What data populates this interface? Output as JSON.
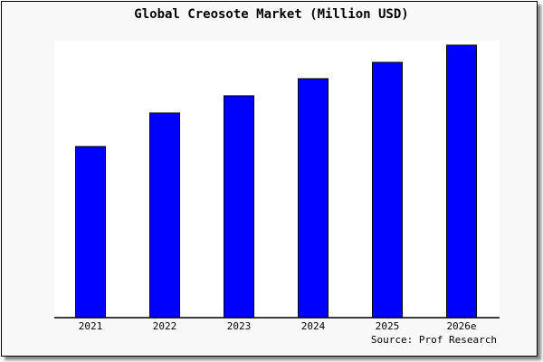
{
  "chart_data": {
    "type": "bar",
    "title": "Global Creosote Market (Million USD)",
    "categories": [
      "2021",
      "2022",
      "2023",
      "2024",
      "2025",
      "2026e"
    ],
    "values": [
      61.8,
      73.9,
      80.1,
      86.3,
      92.2,
      98.4
    ],
    "ylim": [
      0,
      100
    ],
    "xlabel": "",
    "ylabel": "",
    "grid": false,
    "legend": "none",
    "source": "Source: Prof Research",
    "colors": {
      "bar": "#0000ff",
      "bar_outline": "#000000",
      "plot_bg": "#ffffff",
      "frame_bg": "#f8f8f8"
    }
  }
}
